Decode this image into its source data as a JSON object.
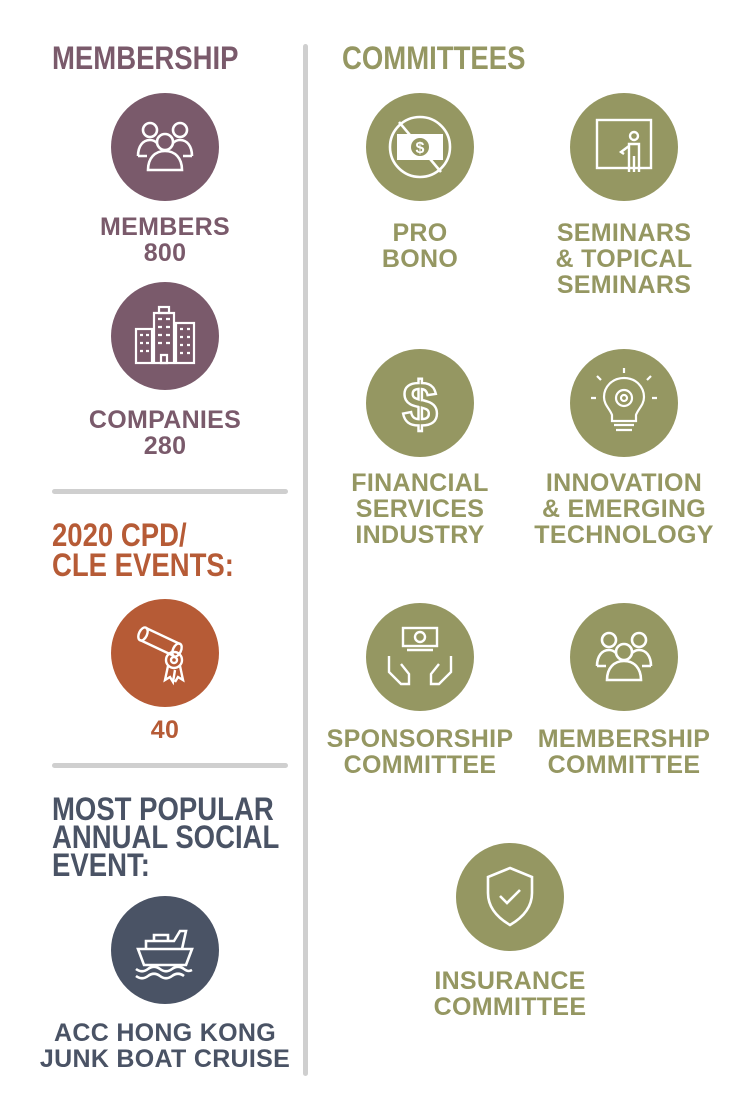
{
  "colors": {
    "membership": "#7a5a6b",
    "committees": "#959762",
    "events": "#b65b36",
    "social": "#4a5365",
    "divider": "#cfcfcf"
  },
  "membership": {
    "title": "MEMBERSHIP",
    "members": {
      "icon": "people-group-icon",
      "label": "MEMBERS",
      "value": "800"
    },
    "companies": {
      "icon": "buildings-icon",
      "label": "COMPANIES",
      "value": "280"
    }
  },
  "events": {
    "title_line1": "2020 CPD/",
    "title_line2": "CLE EVENTS:",
    "icon": "diploma-scroll-icon",
    "value": "40"
  },
  "social": {
    "title_line1": "MOST POPULAR",
    "title_line2": "ANNUAL SOCIAL",
    "title_line3": "EVENT:",
    "icon": "boat-icon",
    "label_line1": "ACC HONG KONG",
    "label_line2": "JUNK BOAT CRUISE"
  },
  "committees": {
    "title": "COMMITTEES",
    "items": [
      {
        "icon": "no-money-icon",
        "lines": [
          "PRO",
          "BONO"
        ]
      },
      {
        "icon": "presenter-board-icon",
        "lines": [
          "SEMINARS",
          "& TOPICAL",
          "SEMINARS"
        ]
      },
      {
        "icon": "dollar-sign-icon",
        "lines": [
          "FINANCIAL",
          "SERVICES",
          "INDUSTRY"
        ]
      },
      {
        "icon": "lightbulb-gear-icon",
        "lines": [
          "INNOVATION",
          "& EMERGING",
          "TECHNOLOGY"
        ]
      },
      {
        "icon": "hands-money-icon",
        "lines": [
          "SPONSORSHIP",
          "COMMITTEE"
        ]
      },
      {
        "icon": "people-group-icon",
        "lines": [
          "MEMBERSHIP",
          "COMMITTEE"
        ]
      },
      {
        "icon": "shield-check-icon",
        "lines": [
          "INSURANCE",
          "COMMITTEE"
        ]
      }
    ]
  }
}
